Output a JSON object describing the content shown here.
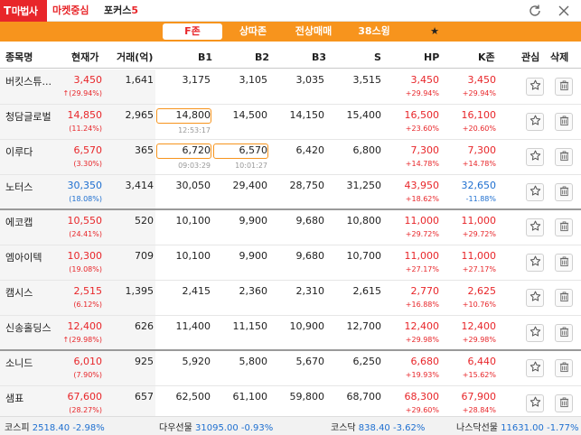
{
  "topbar": {
    "logo_t": "T",
    "logo_text": "마법사",
    "market_tab": "마켓중심",
    "focus_tab": "포커스",
    "focus_num": "5"
  },
  "filters": [
    {
      "label": "F존",
      "active": true
    },
    {
      "label": "상따존",
      "active": false
    },
    {
      "label": "전상매매",
      "active": false
    },
    {
      "label": "38스윙",
      "active": false
    },
    {
      "label": "★",
      "active": false
    }
  ],
  "headers": {
    "name": "종목명",
    "price": "현재가",
    "volume": "거래(억)",
    "b1": "B1",
    "b2": "B2",
    "b3": "B3",
    "s": "S",
    "hp": "HP",
    "kzone": "K존",
    "watch": "관심",
    "delete": "삭제"
  },
  "rows": [
    {
      "name": "버킷스튜...",
      "price": "3,450",
      "pct": "↑(29.94%)",
      "dir": "up",
      "volume": "1,641",
      "b1": "3,175",
      "b2": "3,105",
      "b3": "3,035",
      "s": "3,515",
      "hp": "3,450",
      "hp_pct": "+29.94%",
      "hp_dir": "up",
      "kz": "3,450",
      "kz_pct": "+29.94%",
      "kz_dir": "up",
      "b1_time": "",
      "b2_time": ""
    },
    {
      "name": "청담글로벌",
      "price": "14,850",
      "pct": "(11.24%)",
      "dir": "up",
      "volume": "2,965",
      "b1": "14,800",
      "b2": "14,500",
      "b3": "14,150",
      "s": "15,400",
      "hp": "16,500",
      "hp_pct": "+23.60%",
      "hp_dir": "up",
      "kz": "16,100",
      "kz_pct": "+20.60%",
      "kz_dir": "up",
      "b1_time": "12:53:17",
      "b2_time": ""
    },
    {
      "name": "이루다",
      "price": "6,570",
      "pct": "(3.30%)",
      "dir": "up",
      "volume": "365",
      "b1": "6,720",
      "b2": "6,570",
      "b3": "6,420",
      "s": "6,800",
      "hp": "7,300",
      "hp_pct": "+14.78%",
      "hp_dir": "up",
      "kz": "7,300",
      "kz_pct": "+14.78%",
      "kz_dir": "up",
      "b1_time": "09:03:29",
      "b2_time": "10:01:27"
    },
    {
      "name": "노터스",
      "price": "30,350",
      "pct": "(18.08%)",
      "dir": "down",
      "volume": "3,414",
      "b1": "30,050",
      "b2": "29,400",
      "b3": "28,750",
      "s": "31,250",
      "hp": "43,950",
      "hp_pct": "+18.62%",
      "hp_dir": "up",
      "kz": "32,650",
      "kz_pct": "-11.88%",
      "kz_dir": "down",
      "b1_time": "",
      "b2_time": ""
    },
    {
      "name": "에코캡",
      "price": "10,550",
      "pct": "(24.41%)",
      "dir": "up",
      "volume": "520",
      "b1": "10,100",
      "b2": "9,900",
      "b3": "9,680",
      "s": "10,800",
      "hp": "11,000",
      "hp_pct": "+29.72%",
      "hp_dir": "up",
      "kz": "11,000",
      "kz_pct": "+29.72%",
      "kz_dir": "up",
      "b1_time": "",
      "b2_time": ""
    },
    {
      "name": "엠아이텍",
      "price": "10,300",
      "pct": "(19.08%)",
      "dir": "up",
      "volume": "709",
      "b1": "10,100",
      "b2": "9,900",
      "b3": "9,680",
      "s": "10,700",
      "hp": "11,000",
      "hp_pct": "+27.17%",
      "hp_dir": "up",
      "kz": "11,000",
      "kz_pct": "+27.17%",
      "kz_dir": "up",
      "b1_time": "",
      "b2_time": ""
    },
    {
      "name": "캠시스",
      "price": "2,515",
      "pct": "(6.12%)",
      "dir": "up",
      "volume": "1,395",
      "b1": "2,415",
      "b2": "2,360",
      "b3": "2,310",
      "s": "2,615",
      "hp": "2,770",
      "hp_pct": "+16.88%",
      "hp_dir": "up",
      "kz": "2,625",
      "kz_pct": "+10.76%",
      "kz_dir": "up",
      "b1_time": "",
      "b2_time": ""
    },
    {
      "name": "신송홀딩스",
      "price": "12,400",
      "pct": "↑(29.98%)",
      "dir": "up",
      "volume": "626",
      "b1": "11,400",
      "b2": "11,150",
      "b3": "10,900",
      "s": "12,700",
      "hp": "12,400",
      "hp_pct": "+29.98%",
      "hp_dir": "up",
      "kz": "12,400",
      "kz_pct": "+29.98%",
      "kz_dir": "up",
      "b1_time": "",
      "b2_time": ""
    },
    {
      "name": "소니드",
      "price": "6,010",
      "pct": "(7.90%)",
      "dir": "up",
      "volume": "925",
      "b1": "5,920",
      "b2": "5,800",
      "b3": "5,670",
      "s": "6,250",
      "hp": "6,680",
      "hp_pct": "+19.93%",
      "hp_dir": "up",
      "kz": "6,440",
      "kz_pct": "+15.62%",
      "kz_dir": "up",
      "b1_time": "",
      "b2_time": ""
    },
    {
      "name": "샘표",
      "price": "67,600",
      "pct": "(28.27%)",
      "dir": "up",
      "volume": "657",
      "b1": "62,500",
      "b2": "61,100",
      "b3": "59,800",
      "s": "68,700",
      "hp": "68,300",
      "hp_pct": "+29.60%",
      "hp_dir": "up",
      "kz": "67,900",
      "kz_pct": "+28.84%",
      "kz_dir": "up",
      "b1_time": "",
      "b2_time": ""
    }
  ],
  "ticker": {
    "kospi_label": "코스피",
    "kospi_value": "2518.40 -2.98%",
    "dow_label": "다우선물",
    "dow_value": "31095.00 -0.93%",
    "kosdaq_label": "코스닥",
    "kosdaq_value": "838.40 -3.62%",
    "nasdaq_label": "나스닥선물",
    "nasdaq_value": "11631.00 -1.77%"
  },
  "colors": {
    "up": "#e8262a",
    "down": "#1e6fd0",
    "accent": "#f7941d"
  },
  "icons": {
    "refresh": "refresh-icon",
    "close": "close-icon",
    "watch": "star-icon",
    "delete": "trash-icon"
  }
}
